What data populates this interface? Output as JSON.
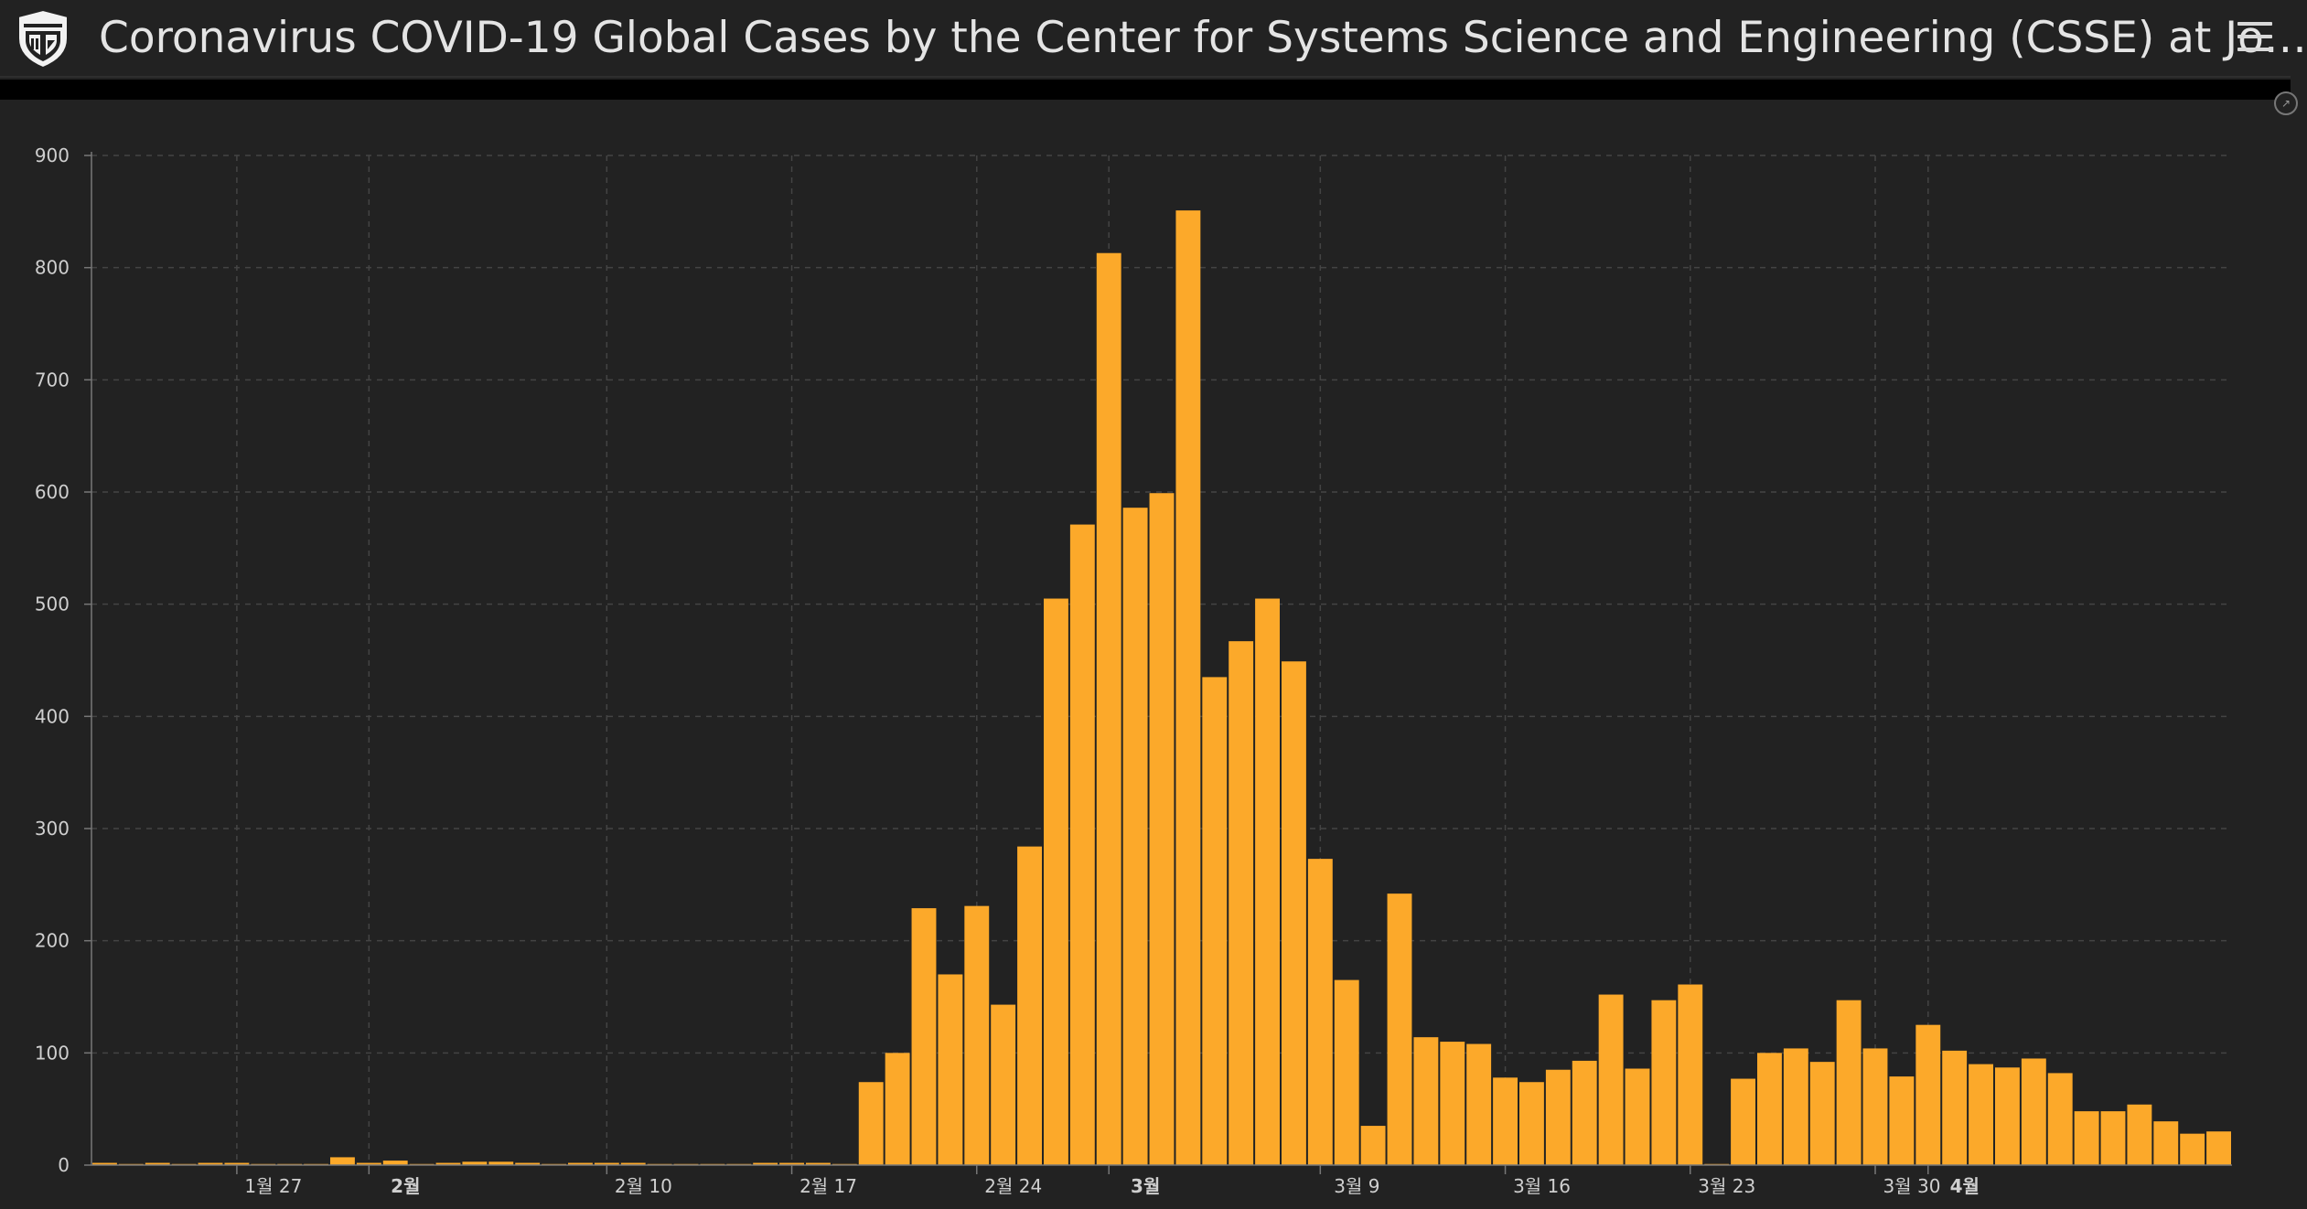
{
  "header": {
    "title": "Coronavirus COVID-19 Global Cases by the Center for Systems Science and Engineering (CSSE) at Jo…",
    "logo": "university-shield-icon",
    "menu_icon": "hamburger-menu-icon",
    "collapse_icon": "collapse-icon"
  },
  "colors": {
    "background": "#222222",
    "bar": "#fca92a",
    "grid": "#444444",
    "text": "#e4e4e4"
  },
  "chart_data": {
    "type": "bar",
    "ylim": [
      0,
      900
    ],
    "yticks": [
      0,
      100,
      200,
      300,
      400,
      500,
      600,
      700,
      800,
      900
    ],
    "grid": true,
    "xticks": [
      {
        "label": "1월 27",
        "index": 5,
        "bold": false
      },
      {
        "label": "2월",
        "index": 10,
        "bold": true
      },
      {
        "label": "2월 10",
        "index": 19,
        "bold": false
      },
      {
        "label": "2월 17",
        "index": 26,
        "bold": false
      },
      {
        "label": "2월 24",
        "index": 33,
        "bold": false
      },
      {
        "label": "3월",
        "index": 38,
        "bold": true
      },
      {
        "label": "3월 9",
        "index": 46,
        "bold": false
      },
      {
        "label": "3월 16",
        "index": 53,
        "bold": false
      },
      {
        "label": "3월 23",
        "index": 60,
        "bold": false
      },
      {
        "label": "3월 30",
        "index": 67,
        "bold": false
      },
      {
        "label": "4월",
        "index": 69,
        "bold": true
      }
    ],
    "values": [
      2,
      1,
      2,
      1,
      2,
      2,
      1,
      1,
      1,
      7,
      2,
      4,
      1,
      2,
      3,
      3,
      2,
      1,
      2,
      2,
      2,
      1,
      1,
      1,
      1,
      2,
      2,
      2,
      1,
      74,
      100,
      229,
      170,
      231,
      143,
      284,
      505,
      571,
      813,
      586,
      599,
      851,
      435,
      467,
      505,
      449,
      273,
      165,
      35,
      242,
      114,
      110,
      108,
      78,
      74,
      85,
      93,
      152,
      86,
      147,
      161,
      1,
      77,
      100,
      104,
      92,
      147,
      104,
      79,
      125,
      102,
      90,
      87,
      95,
      82,
      48,
      48,
      54,
      39,
      28,
      30
    ]
  }
}
